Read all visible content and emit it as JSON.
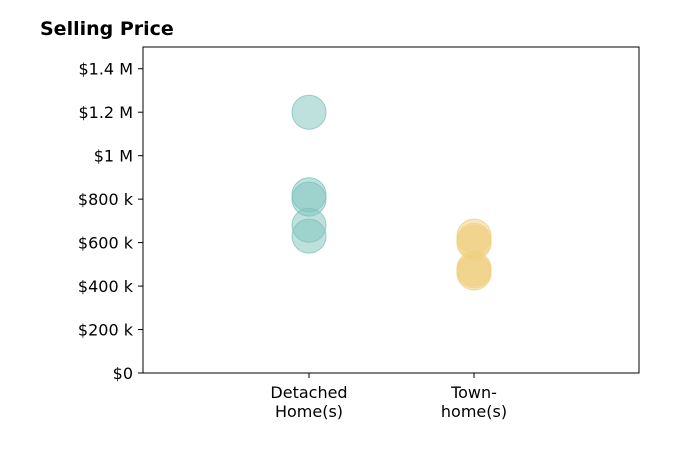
{
  "chart_data": {
    "type": "scatter",
    "title": "Selling Price",
    "xlabel": "",
    "ylabel": "",
    "categories": [
      [
        "Detached",
        "Home(s)"
      ],
      [
        "Town-",
        "home(s)"
      ]
    ],
    "ylim": [
      0,
      1500000
    ],
    "y_ticks": [
      0,
      200000,
      400000,
      600000,
      800000,
      1000000,
      1200000,
      1400000
    ],
    "y_tick_labels": [
      "$0",
      "$200 k",
      "$400 k",
      "$600 k",
      "$800 k",
      "$1 M",
      "$1.2 M",
      "$1.4 M"
    ],
    "grid": false,
    "series": [
      {
        "color": "#7ec4bb",
        "category_index": 0,
        "values": [
          1200000,
          820000,
          800000,
          680000,
          630000
        ]
      },
      {
        "color": "#f0cf7f",
        "category_index": 1,
        "values": [
          630000,
          610000,
          600000,
          480000,
          470000,
          460000
        ]
      }
    ]
  }
}
